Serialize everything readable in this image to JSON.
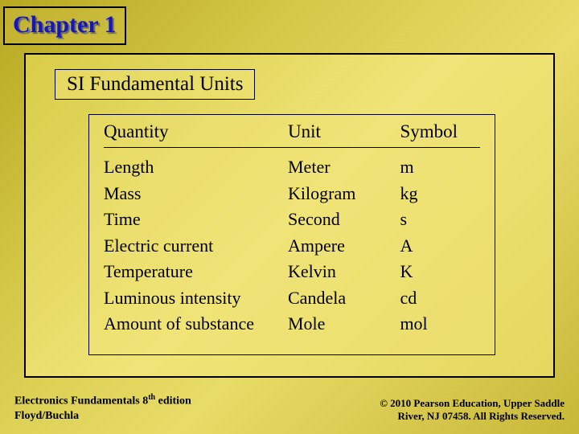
{
  "chapter": "Chapter 1",
  "section_title": "SI Fundamental Units",
  "table": {
    "headers": {
      "quantity": "Quantity",
      "unit": "Unit",
      "symbol": "Symbol"
    },
    "rows": [
      {
        "quantity": "Length",
        "unit": "Meter",
        "symbol": "m"
      },
      {
        "quantity": "Mass",
        "unit": "Kilogram",
        "symbol": "kg"
      },
      {
        "quantity": "Time",
        "unit": "Second",
        "symbol": "s"
      },
      {
        "quantity": "Electric current",
        "unit": "Ampere",
        "symbol": "A"
      },
      {
        "quantity": "Temperature",
        "unit": "Kelvin",
        "symbol": "K"
      },
      {
        "quantity": "Luminous intensity",
        "unit": "Candela",
        "symbol": "cd"
      },
      {
        "quantity": "Amount of substance",
        "unit": "Mole",
        "symbol": "mol"
      }
    ]
  },
  "footer": {
    "left_line1_a": "Electronics Fundamentals 8",
    "left_line1_b": "th",
    "left_line1_c": " edition",
    "left_line2": "Floyd/Buchla",
    "right_line1": "© 2010 Pearson Education, Upper Saddle",
    "right_line2": "River, NJ 07458. All Rights Reserved."
  },
  "colors": {
    "chapter_text": "#1818b0",
    "border": "#000000",
    "text": "#000000"
  }
}
